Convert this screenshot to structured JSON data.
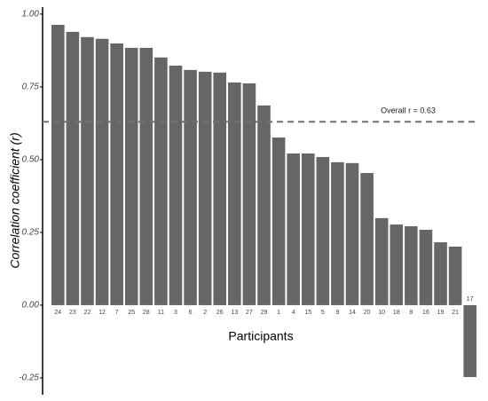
{
  "chart_data": {
    "type": "bar",
    "y_label": "Correlation coefficient (r)",
    "x_label": "Participants",
    "categories": [
      "24",
      "23",
      "22",
      "12",
      "7",
      "25",
      "28",
      "11",
      "3",
      "6",
      "2",
      "26",
      "13",
      "27",
      "29",
      "1",
      "4",
      "15",
      "5",
      "9",
      "14",
      "20",
      "10",
      "18",
      "8",
      "16",
      "19",
      "21",
      "17"
    ],
    "values": [
      0.963,
      0.939,
      0.921,
      0.915,
      0.899,
      0.884,
      0.884,
      0.851,
      0.823,
      0.808,
      0.802,
      0.799,
      0.765,
      0.762,
      0.686,
      0.576,
      0.521,
      0.521,
      0.509,
      0.491,
      0.488,
      0.454,
      0.299,
      0.277,
      0.271,
      0.259,
      0.216,
      0.201,
      -0.247
    ],
    "color": "#666666",
    "ylim": [
      -0.308,
      1.024
    ],
    "yticks": [
      {
        "value": -0.25,
        "label": "-0.25"
      },
      {
        "value": 0,
        "label": "0.00"
      },
      {
        "value": 0.25,
        "label": "0.25"
      },
      {
        "value": 0.5,
        "label": "0.50"
      },
      {
        "value": 0.75,
        "label": "0.75"
      },
      {
        "value": 1,
        "label": "1.00"
      }
    ],
    "reference_line": {
      "value": 0.63,
      "label": "Overall r = 0.63",
      "color": "#707070"
    }
  }
}
